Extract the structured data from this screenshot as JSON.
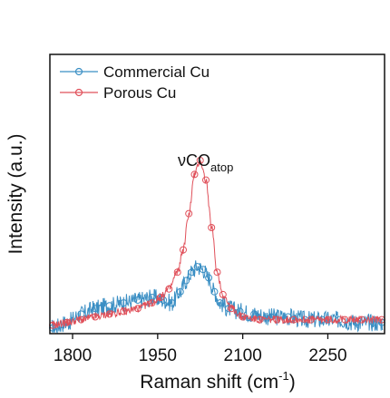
{
  "chart_data": {
    "type": "line",
    "title": "",
    "xlabel": "Raman shift (cm",
    "xlabel_sup": "-1",
    "xlabel_end": ")",
    "ylabel": "Intensity (a.u.)",
    "xlim": [
      1760,
      2350
    ],
    "ylim": [
      0,
      100
    ],
    "xticks": [
      "1800",
      "1950",
      "2100",
      "2250"
    ],
    "xtick_values": [
      1800,
      1950,
      2100,
      2250
    ],
    "grid": false,
    "legend_position": "top-left",
    "annotation": {
      "main": "νCO",
      "sub": "atop",
      "x": 2035,
      "y": 62
    },
    "series": [
      {
        "name": "Commercial Cu",
        "color": "#3b8fc4",
        "x": [
          1765,
          1790,
          1815,
          1840,
          1865,
          1890,
          1915,
          1940,
          1960,
          1975,
          1990,
          2000,
          2010,
          2020,
          2030,
          2040,
          2050,
          2060,
          2075,
          2095,
          2120,
          2150,
          2180,
          2210,
          2240,
          2270,
          2300,
          2330,
          2345
        ],
        "y": [
          2,
          4,
          7,
          9,
          10,
          11,
          12,
          13,
          12,
          11,
          15,
          19,
          22,
          24,
          23,
          20,
          15,
          11,
          9,
          8,
          7,
          6,
          6,
          5,
          5,
          5,
          4,
          4,
          4
        ]
      },
      {
        "name": "Porous Cu",
        "color": "#e0505a",
        "x": [
          1765,
          1790,
          1815,
          1840,
          1865,
          1890,
          1915,
          1940,
          1955,
          1970,
          1985,
          1995,
          2005,
          2015,
          2025,
          2035,
          2045,
          2055,
          2065,
          2080,
          2100,
          2130,
          2160,
          2190,
          2220,
          2250,
          2280,
          2310,
          2345
        ],
        "y": [
          3,
          4,
          5,
          6,
          7,
          8,
          9,
          11,
          13,
          16,
          22,
          30,
          43,
          57,
          62,
          55,
          38,
          22,
          14,
          9,
          6,
          5,
          5,
          5,
          5,
          5,
          5,
          5,
          5
        ]
      }
    ]
  }
}
